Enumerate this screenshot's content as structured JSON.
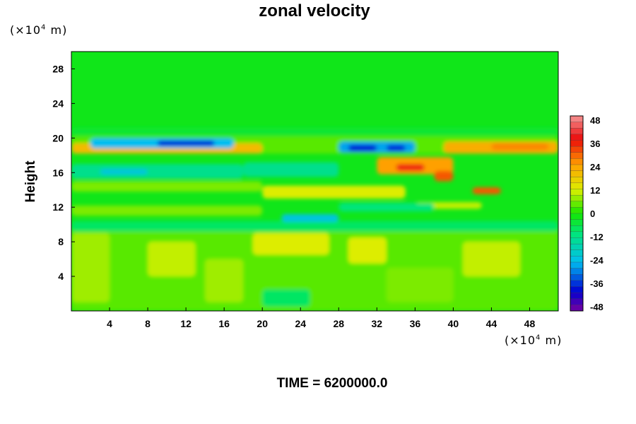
{
  "chart_data": {
    "type": "heatmap",
    "title": "zonal velocity",
    "xlabel": "",
    "ylabel": "Height",
    "x_unit": "(×10⁴ m)",
    "y_unit": "(×10⁴ m)",
    "xlim": [
      0,
      51
    ],
    "ylim": [
      0,
      30
    ],
    "x_ticks": [
      4,
      8,
      12,
      16,
      20,
      24,
      28,
      32,
      36,
      40,
      44,
      48
    ],
    "y_ticks": [
      4,
      8,
      12,
      16,
      20,
      24,
      28
    ],
    "colorbar": {
      "min": -48,
      "max": 48,
      "tick_labels": [
        48,
        36,
        24,
        12,
        0,
        -12,
        -24,
        -36,
        -48
      ]
    },
    "footer": "TIME = 6200000.0"
  }
}
